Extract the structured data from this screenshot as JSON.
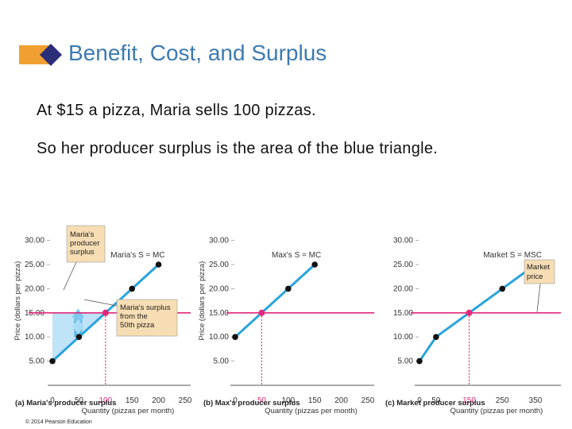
{
  "slide": {
    "title": "Benefit, Cost, and Surplus",
    "lines": [
      "At $15 a pizza, Maria sells 100 pizzas.",
      "So her producer surplus is the area of the blue triangle."
    ],
    "copyright": "© 2014 Pearson Education"
  },
  "colors": {
    "title": "#3d7ab0",
    "supply_curve": "#29a3dc",
    "price_line": "#e2287a",
    "surplus_fill": "#bfe3f7",
    "callout_fill": "#f7ddb3",
    "bullet_orange": "#f0a030",
    "bullet_navy": "#2b2f7a"
  },
  "chart_data": [
    {
      "type": "line",
      "panel": "(a) Maria's producer surplus",
      "ylabel": "Price (dollars per pizza)",
      "xlabel": "Quantity (pizzas per month)",
      "x_ticks": [
        "0",
        "50",
        "100",
        "150",
        "200",
        "250"
      ],
      "y_ticks": [
        "5.00",
        "10.00",
        "15.00",
        "20.00",
        "25.00",
        "30.00"
      ],
      "xlim": [
        0,
        250
      ],
      "ylim": [
        0,
        32
      ],
      "series": [
        {
          "name": "Maria's S = MC",
          "x": [
            0,
            50,
            150,
            200
          ],
          "y": [
            5,
            10,
            20,
            25
          ]
        }
      ],
      "price": 15,
      "quantity_sold": 100,
      "annotations": {
        "surplus_label": [
          "Maria's",
          "producer",
          "surplus"
        ],
        "surplus_50_label": [
          "Maria's surplus",
          "from the",
          "50th pizza"
        ],
        "unit_surplus_at_x": 50
      }
    },
    {
      "type": "line",
      "panel": "(b) Max's producer surplus",
      "ylabel": "Price (dollars per pizza)",
      "xlabel": "Quantity (pizzas per month)",
      "x_ticks": [
        "0",
        "50",
        "100",
        "150",
        "200",
        "250"
      ],
      "y_ticks": [
        "5.00",
        "10.00",
        "15.00",
        "20.00",
        "25.00",
        "30.00"
      ],
      "xlim": [
        0,
        250
      ],
      "ylim": [
        0,
        32
      ],
      "series": [
        {
          "name": "Max's S = MC",
          "x": [
            0,
            100,
            150
          ],
          "y": [
            10,
            20,
            25
          ]
        }
      ],
      "price": 15,
      "quantity_sold": 50
    },
    {
      "type": "line",
      "panel": "(c) Market producer surplus",
      "xlabel": "Quantity (pizzas per month)",
      "x_ticks": [
        "0",
        "50",
        "150",
        "250",
        "350"
      ],
      "y_ticks": [
        "5.00",
        "10.00",
        "15.00",
        "20.00",
        "25.00",
        "30.00"
      ],
      "xlim": [
        0,
        350
      ],
      "ylim": [
        0,
        32
      ],
      "series": [
        {
          "name": "Market S = MSC",
          "x": [
            0,
            50,
            250,
            350
          ],
          "y": [
            5,
            10,
            20,
            25
          ]
        }
      ],
      "price": 15,
      "quantity_sold": 150,
      "annotations": {
        "price_label": [
          "Market",
          "price"
        ]
      }
    }
  ]
}
